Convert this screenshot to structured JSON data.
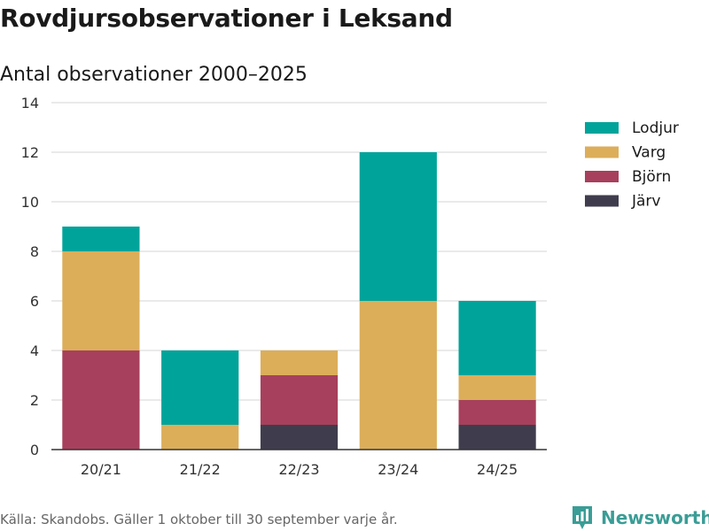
{
  "title": "Rovdjursobservationer i Leksand",
  "subtitle": "Antal observationer 2000–2025",
  "source": "Källa: Skandobs. Gäller 1 oktober till 30 september varje år.",
  "brand": {
    "name": "Newsworthy",
    "icon": "newsworthy-logo-icon",
    "color": "#3a9d96"
  },
  "chart_data": {
    "type": "bar",
    "stacked": true,
    "title": "Rovdjursobservationer i Leksand",
    "subtitle": "Antal observationer 2000–2025",
    "xlabel": "",
    "ylabel": "",
    "ylim": [
      0,
      14
    ],
    "yticks": [
      0,
      2,
      4,
      6,
      8,
      10,
      12,
      14
    ],
    "grid": true,
    "legend_position": "top-right",
    "categories": [
      "20/21",
      "21/22",
      "22/23",
      "23/24",
      "24/25"
    ],
    "series": [
      {
        "name": "Järv",
        "color": "#3f3d4d",
        "values": [
          0,
          0,
          1,
          0,
          1
        ]
      },
      {
        "name": "Björn",
        "color": "#a7405c",
        "values": [
          4,
          0,
          2,
          0,
          1
        ]
      },
      {
        "name": "Varg",
        "color": "#dcae5a",
        "values": [
          4,
          1,
          1,
          6,
          1
        ]
      },
      {
        "name": "Lodjur",
        "color": "#00a39a",
        "values": [
          1,
          3,
          0,
          6,
          3
        ]
      }
    ],
    "legend_order": [
      "Lodjur",
      "Varg",
      "Björn",
      "Järv"
    ]
  }
}
